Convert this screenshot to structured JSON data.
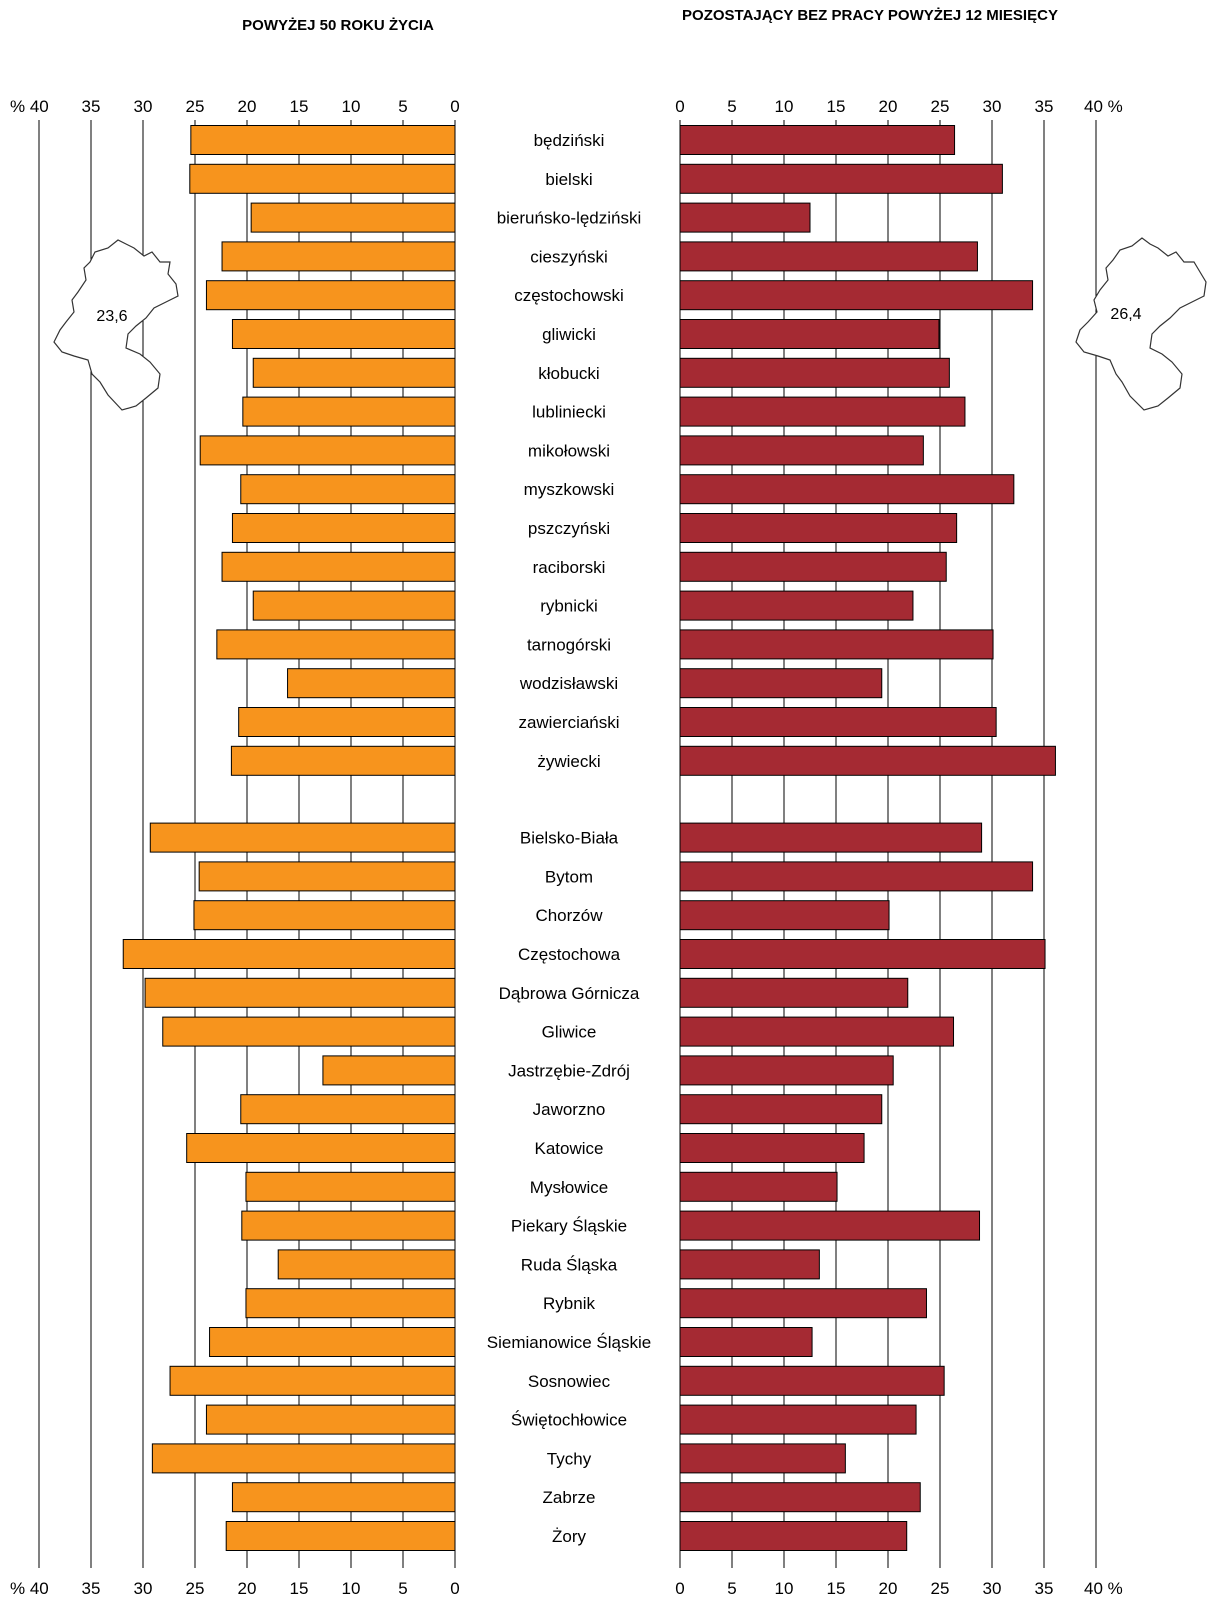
{
  "chart_data": [
    {
      "type": "bar",
      "orientation": "horizontal",
      "title": "POWYŻEJ 50 ROKU ŻYCIA",
      "axis_direction": "reversed",
      "xlim": [
        0,
        40
      ],
      "ticks": [
        "% 40",
        "35",
        "30",
        "25",
        "20",
        "15",
        "10",
        "5",
        "0"
      ],
      "color": "#F7941D",
      "map_value": "23,6",
      "grid": true
    },
    {
      "type": "bar",
      "orientation": "horizontal",
      "title": "POZOSTAJĄCY BEZ PRACY POWYŻEJ  12 MIESIĘCY",
      "xlim": [
        0,
        40
      ],
      "ticks": [
        "0",
        "5",
        "10",
        "15",
        "20",
        "25",
        "30",
        "35",
        "40 %"
      ],
      "color": "#A52A33",
      "map_value": "26,4",
      "grid": true
    }
  ],
  "categories": [
    "będziński",
    "bielski",
    "bieruńsko-lędziński",
    "cieszyński",
    "częstochowski",
    "gliwicki",
    "kłobucki",
    "lubliniecki",
    "mikołowski",
    "myszkowski",
    "pszczyński",
    "raciborski",
    "rybnicki",
    "tarnogórski",
    "wodzisławski",
    "zawierciański",
    "żywiecki",
    "Bielsko-Biała",
    "Bytom",
    "Chorzów",
    "Częstochowa",
    "Dąbrowa Górnicza",
    "Gliwice",
    "Jastrzębie-Zdrój",
    "Jaworzno",
    "Katowice",
    "Mysłowice",
    "Piekary Śląskie",
    "Ruda Śląska",
    "Rybnik",
    "Siemianowice Śląskie",
    "Sosnowiec",
    "Świętochłowice",
    "Tychy",
    "Zabrze",
    "Żory"
  ],
  "group_break_after": 17,
  "left_values": [
    25.4,
    25.5,
    19.6,
    22.4,
    23.9,
    21.4,
    19.4,
    20.4,
    24.5,
    20.6,
    21.4,
    22.4,
    19.4,
    22.9,
    16.1,
    20.8,
    21.5,
    29.3,
    24.6,
    25.1,
    31.9,
    29.8,
    28.1,
    12.7,
    20.6,
    25.8,
    20.1,
    20.5,
    17.0,
    20.1,
    23.6,
    27.4,
    23.9,
    29.1,
    21.4,
    22.0
  ],
  "right_values": [
    26.4,
    31.0,
    12.5,
    28.6,
    33.9,
    24.9,
    25.9,
    27.4,
    23.4,
    32.1,
    26.6,
    25.6,
    22.4,
    30.1,
    19.4,
    30.4,
    36.1,
    29.0,
    33.9,
    20.1,
    35.1,
    21.9,
    26.3,
    20.5,
    19.4,
    17.7,
    15.1,
    28.8,
    13.4,
    23.7,
    12.7,
    25.4,
    22.7,
    15.9,
    23.1,
    21.8
  ]
}
